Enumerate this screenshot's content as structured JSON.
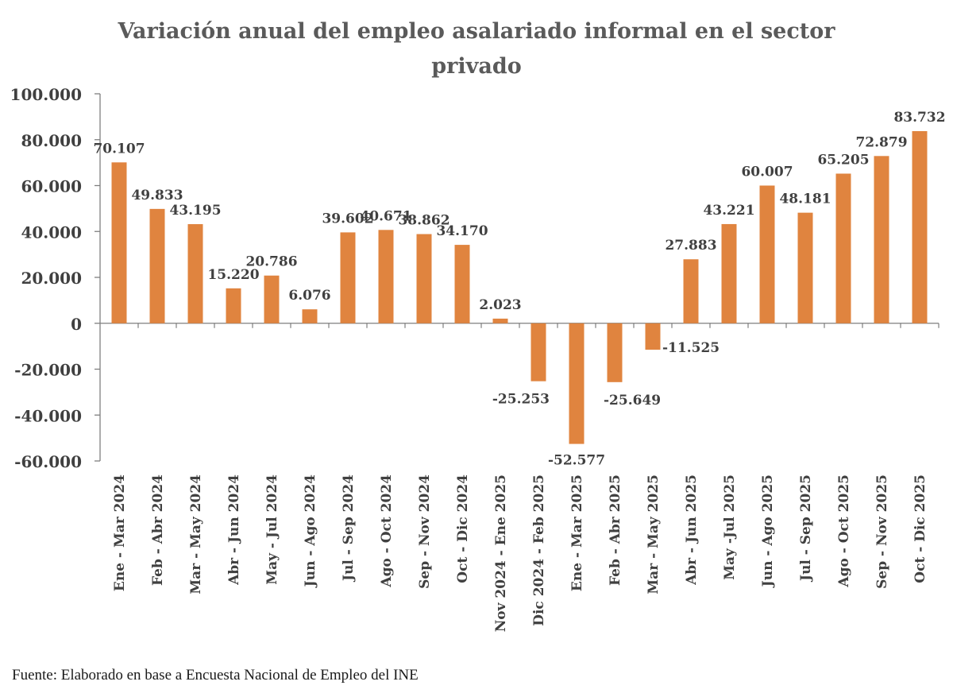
{
  "chart_data": {
    "type": "bar",
    "title": "Variación anual del empleo asalariado informal en el sector privado",
    "title_lines": [
      "Variación anual del empleo asalariado informal en el sector",
      "privado"
    ],
    "categories": [
      "Ene - Mar 2024",
      "Feb - Abr 2024",
      "Mar - May 2024",
      "Abr - Jun 2024",
      "May - Jul 2024",
      "Jun - Ago 2024",
      "Jul - Sep 2024",
      "Ago - Oct 2024",
      "Sep - Nov 2024",
      "Oct - Dic 2024",
      "Nov 2024 - Ene 2025",
      "Dic 2024 - Feb 2025",
      "Ene - Mar 2025",
      "Feb - Abr 2025",
      "Mar - May 2025",
      "Abr - Jun 2025",
      "May -Jul 2025",
      "Jun - Ago 2025",
      "Jul - Sep 2025",
      "Ago - Oct 2025",
      "Sep - Nov 2025",
      "Oct - Dic 2025"
    ],
    "values": [
      70107,
      49833,
      43195,
      15220,
      20786,
      6076,
      39602,
      40671,
      38862,
      34170,
      2023,
      -25253,
      -52577,
      -25649,
      -11525,
      27883,
      43221,
      60007,
      48181,
      65205,
      72879,
      83732
    ],
    "data_labels": [
      "70.107",
      "49.833",
      "43.195",
      "15.220",
      "20.786",
      "6.076",
      "39.602",
      "40.671",
      "38.862",
      "34.170",
      "2.023",
      "-25.253",
      "-52.577",
      "-25.649",
      "-11.525",
      "27.883",
      "43.221",
      "60.007",
      "48.181",
      "65.205",
      "72.879",
      "83.732"
    ],
    "y_ticks": [
      100000,
      80000,
      60000,
      40000,
      20000,
      0,
      -20000,
      -40000,
      -60000
    ],
    "y_tick_labels": [
      "100.000",
      "80.000",
      "60.000",
      "40.000",
      "20.000",
      "0",
      "-20.000",
      "-40.000",
      "-60.000"
    ],
    "ylim": [
      -60000,
      100000
    ],
    "xlabel": "",
    "ylabel": "",
    "grid": false,
    "legend": "none",
    "bar_color": "#e0843f",
    "axis_color": "#7f7f7f",
    "text_color": "#404040"
  },
  "source": "Fuente: Elaborado en base a Encuesta Nacional de Empleo del INE"
}
